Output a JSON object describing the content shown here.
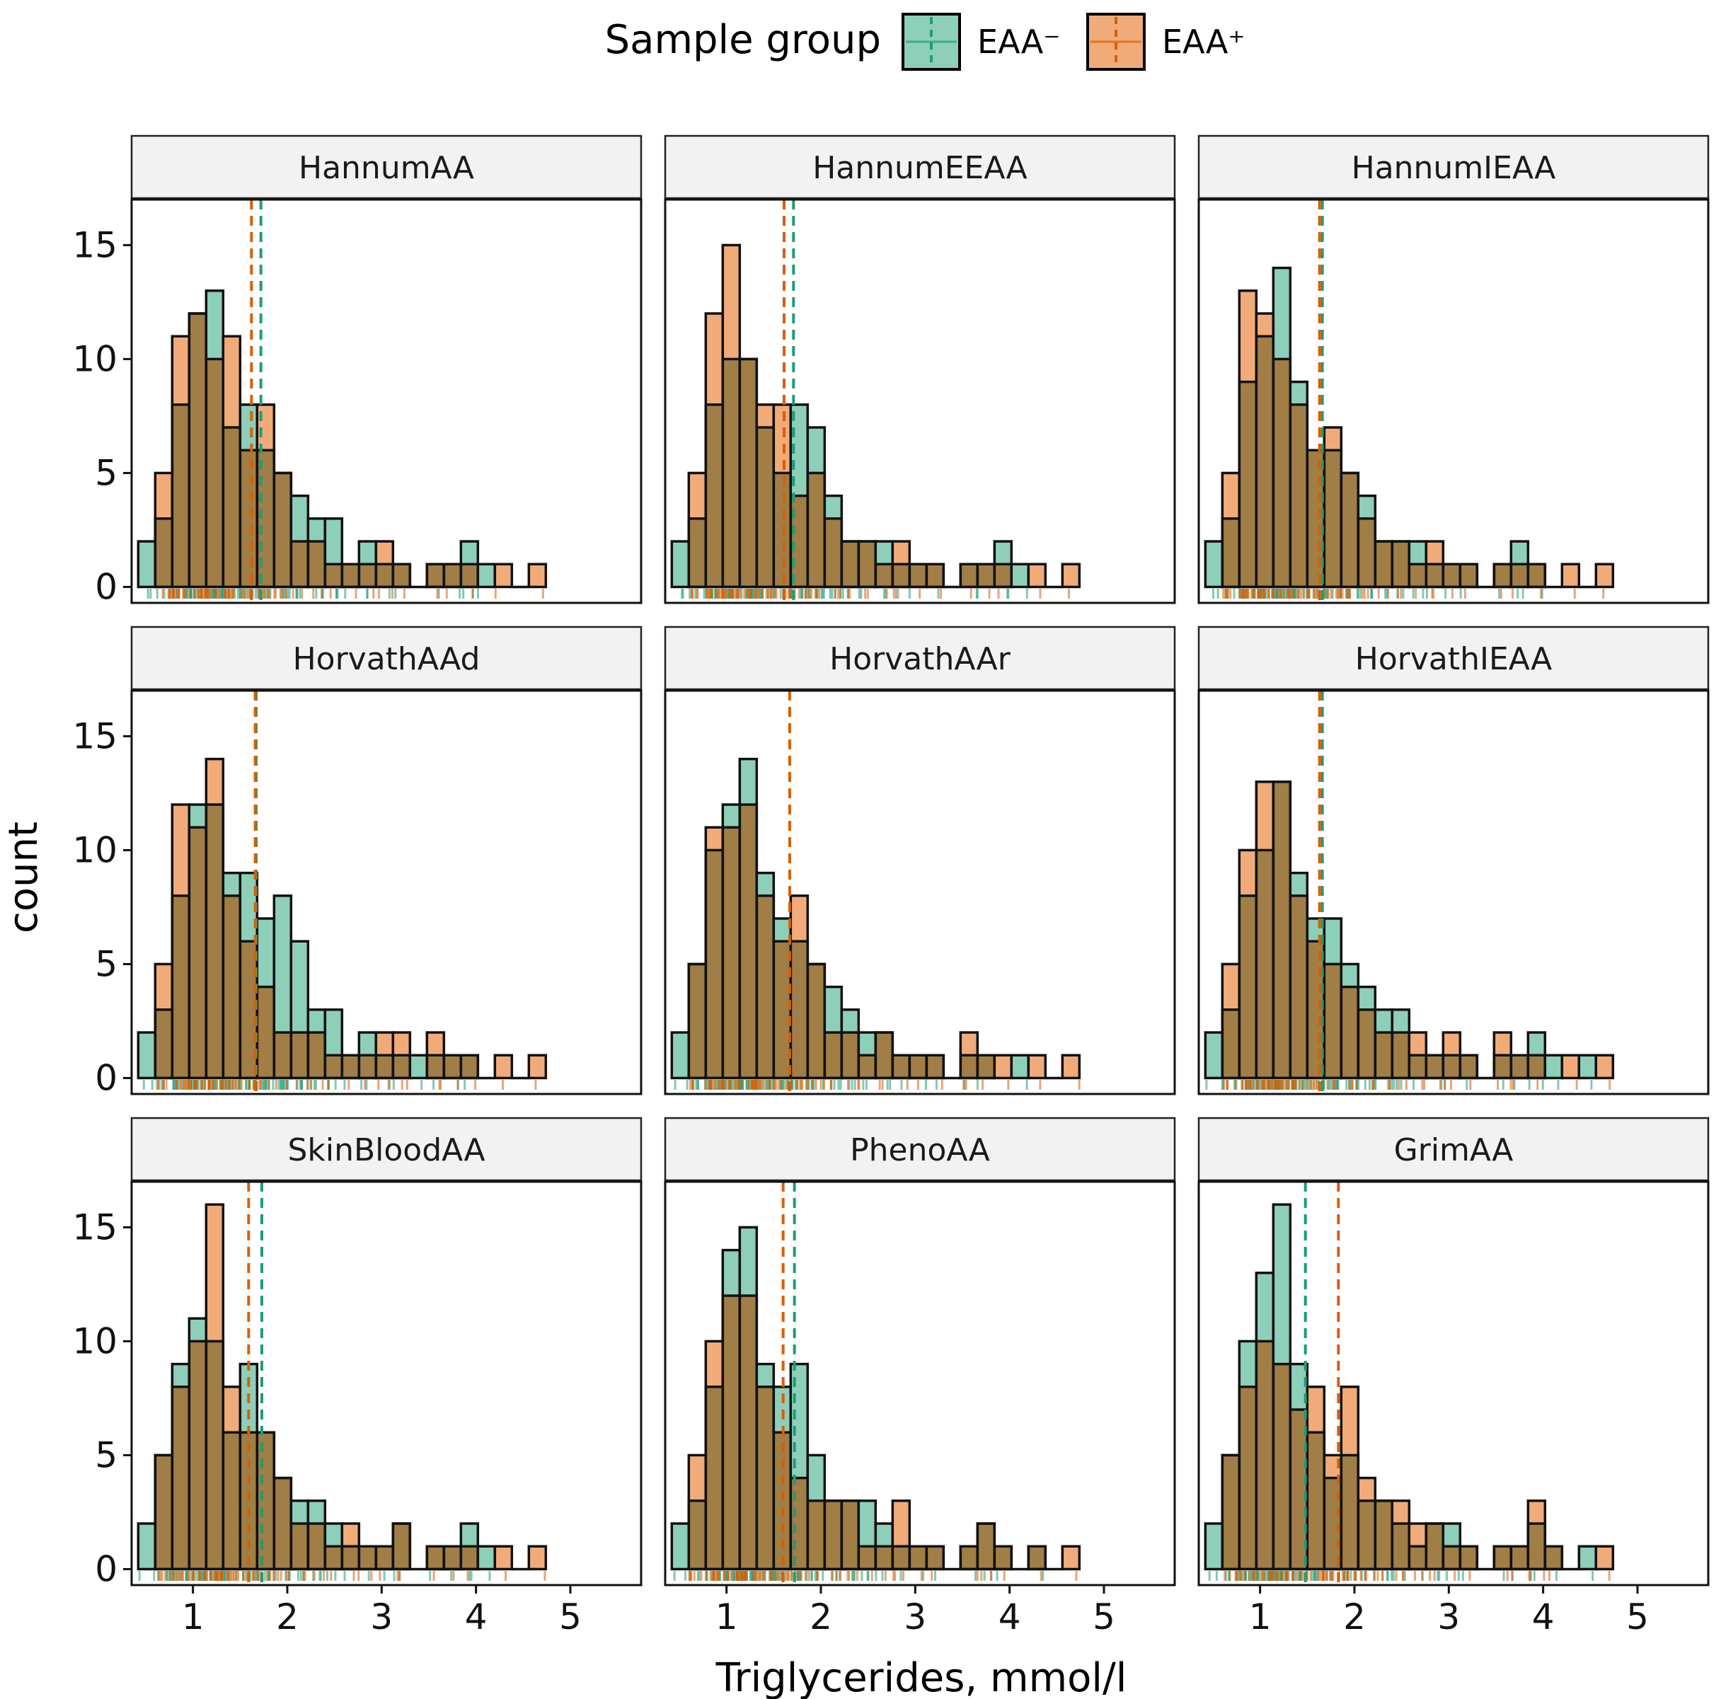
{
  "legend": {
    "title": "Sample group",
    "items": [
      {
        "label": "EAA⁻",
        "fill": "#8ecfb9",
        "line": "#1b9e77"
      },
      {
        "label": "EAA⁺",
        "fill": "#f1ab79",
        "line": "#d95f02"
      }
    ]
  },
  "chart_data": {
    "type": "bar",
    "layout": "3x3 facet grid of overlaid histograms with rug marks and dashed mean lines",
    "xlabel": "Triglycerides, mmol/l",
    "ylabel": "count",
    "xlim": [
      0.35,
      5.75
    ],
    "ylim": [
      -0.7,
      17
    ],
    "xticks": [
      1,
      2,
      3,
      4,
      5
    ],
    "yticks": [
      0,
      5,
      10,
      15
    ],
    "bins": {
      "start": 0.42,
      "width": 0.18,
      "count": 24
    },
    "series_names": [
      "EAA⁻",
      "EAA⁺"
    ],
    "colors": {
      "EAA⁻": "#1b9e77",
      "EAA⁺": "#d95f02",
      "EAA⁻_fill": "#8ecfb9",
      "EAA⁺_fill": "#f1ab79",
      "overlap": "#a07e46"
    },
    "panels": [
      {
        "title": "HannumAA",
        "mean_neg": 1.72,
        "mean_pos": 1.62,
        "neg": [
          2,
          3,
          8,
          12,
          13,
          7,
          8,
          6,
          5,
          4,
          3,
          3,
          1,
          2,
          1,
          1,
          0,
          1,
          1,
          2,
          1,
          0,
          0,
          0
        ],
        "pos": [
          0,
          5,
          11,
          12,
          10,
          11,
          6,
          8,
          5,
          2,
          2,
          1,
          1,
          1,
          2,
          1,
          0,
          1,
          1,
          1,
          0,
          1,
          0,
          1
        ]
      },
      {
        "title": "HannumEEAA",
        "mean_neg": 1.71,
        "mean_pos": 1.61,
        "neg": [
          2,
          3,
          8,
          10,
          10,
          7,
          5,
          8,
          7,
          4,
          2,
          2,
          2,
          1,
          1,
          1,
          0,
          1,
          1,
          2,
          1,
          0,
          0,
          0
        ],
        "pos": [
          0,
          5,
          12,
          15,
          10,
          8,
          8,
          4,
          5,
          3,
          2,
          2,
          1,
          2,
          1,
          1,
          0,
          1,
          1,
          1,
          0,
          1,
          0,
          1
        ]
      },
      {
        "title": "HannumIEAA",
        "mean_neg": 1.66,
        "mean_pos": 1.63,
        "neg": [
          2,
          3,
          9,
          11,
          14,
          9,
          6,
          6,
          5,
          4,
          2,
          2,
          2,
          1,
          1,
          1,
          0,
          1,
          2,
          1,
          0,
          0,
          0,
          0
        ],
        "pos": [
          0,
          5,
          13,
          12,
          10,
          8,
          6,
          7,
          5,
          3,
          2,
          2,
          1,
          2,
          1,
          1,
          0,
          1,
          1,
          1,
          0,
          1,
          0,
          1
        ]
      },
      {
        "title": "HorvathAAd",
        "mean_neg": 1.67,
        "mean_pos": 1.66,
        "neg": [
          2,
          3,
          8,
          12,
          12,
          9,
          9,
          7,
          8,
          6,
          3,
          3,
          1,
          2,
          1,
          1,
          1,
          1,
          1,
          1,
          0,
          0,
          0,
          0
        ],
        "pos": [
          0,
          5,
          12,
          11,
          14,
          8,
          6,
          4,
          2,
          2,
          2,
          1,
          1,
          1,
          2,
          2,
          0,
          2,
          1,
          1,
          0,
          1,
          0,
          1
        ]
      },
      {
        "title": "HorvathAAr",
        "mean_neg": 1.67,
        "mean_pos": 1.67,
        "neg": [
          2,
          5,
          10,
          12,
          14,
          9,
          7,
          6,
          5,
          4,
          3,
          2,
          2,
          1,
          1,
          1,
          0,
          1,
          1,
          0,
          1,
          0,
          0,
          0
        ],
        "pos": [
          0,
          5,
          11,
          11,
          12,
          8,
          6,
          8,
          5,
          2,
          2,
          1,
          2,
          1,
          1,
          1,
          0,
          2,
          1,
          1,
          0,
          1,
          0,
          1
        ]
      },
      {
        "title": "HorvathIEAA",
        "mean_neg": 1.66,
        "mean_pos": 1.63,
        "neg": [
          2,
          3,
          8,
          10,
          13,
          9,
          7,
          7,
          5,
          4,
          3,
          3,
          1,
          1,
          1,
          1,
          0,
          1,
          1,
          2,
          1,
          0,
          1,
          0
        ],
        "pos": [
          0,
          5,
          10,
          13,
          13,
          8,
          6,
          5,
          4,
          3,
          2,
          2,
          2,
          1,
          2,
          1,
          0,
          2,
          1,
          1,
          0,
          1,
          0,
          1
        ]
      },
      {
        "title": "SkinBloodAA",
        "mean_neg": 1.73,
        "mean_pos": 1.59,
        "neg": [
          2,
          5,
          9,
          11,
          10,
          6,
          9,
          6,
          4,
          3,
          3,
          2,
          1,
          1,
          1,
          2,
          0,
          1,
          1,
          2,
          1,
          0,
          0,
          0
        ],
        "pos": [
          0,
          5,
          8,
          10,
          16,
          8,
          6,
          6,
          4,
          2,
          2,
          1,
          2,
          1,
          1,
          2,
          0,
          1,
          1,
          1,
          0,
          1,
          0,
          1
        ]
      },
      {
        "title": "PhenoAA",
        "mean_neg": 1.72,
        "mean_pos": 1.6,
        "neg": [
          2,
          3,
          8,
          14,
          15,
          9,
          8,
          9,
          5,
          3,
          3,
          3,
          2,
          1,
          1,
          1,
          0,
          1,
          2,
          1,
          0,
          1,
          0,
          0
        ],
        "pos": [
          0,
          5,
          10,
          12,
          12,
          8,
          6,
          4,
          3,
          3,
          3,
          1,
          1,
          3,
          1,
          1,
          0,
          1,
          2,
          1,
          0,
          1,
          0,
          1
        ]
      },
      {
        "title": "GrimAA",
        "mean_neg": 1.48,
        "mean_pos": 1.83,
        "neg": [
          2,
          5,
          10,
          13,
          16,
          9,
          6,
          4,
          5,
          3,
          3,
          2,
          1,
          2,
          2,
          1,
          0,
          1,
          1,
          2,
          1,
          0,
          1,
          0
        ],
        "pos": [
          0,
          5,
          8,
          10,
          9,
          7,
          8,
          5,
          8,
          4,
          3,
          3,
          2,
          2,
          1,
          1,
          0,
          1,
          1,
          3,
          1,
          0,
          0,
          1
        ]
      }
    ]
  }
}
